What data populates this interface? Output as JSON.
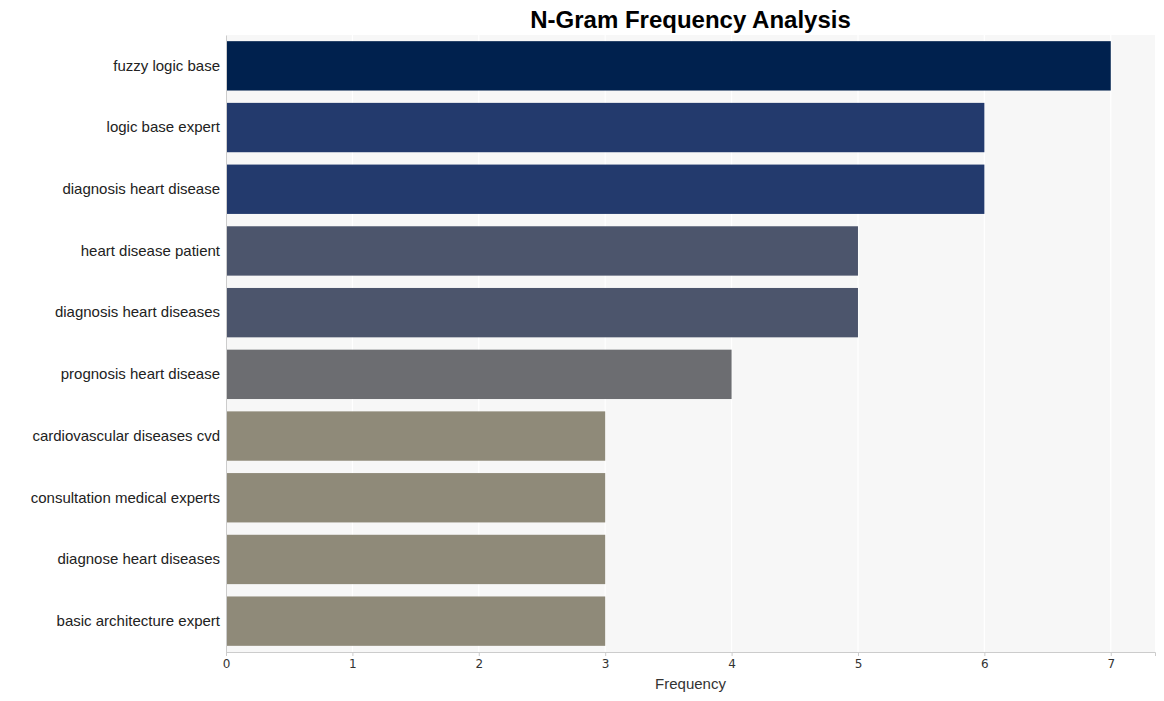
{
  "chart_data": {
    "type": "bar",
    "orientation": "horizontal",
    "title": "N-Gram Frequency Analysis",
    "x_label": "Frequency",
    "categories": [
      "fuzzy logic base",
      "logic base expert",
      "diagnosis heart disease",
      "heart disease patient",
      "diagnosis heart diseases",
      "prognosis heart disease",
      "cardiovascular diseases cvd",
      "consultation medical experts",
      "diagnose heart diseases",
      "basic architecture expert"
    ],
    "values": [
      7,
      6,
      6,
      5,
      5,
      4,
      3,
      3,
      3,
      3
    ],
    "colors": [
      "#00214e",
      "#233a6d",
      "#233a6d",
      "#4c556c",
      "#4c556c",
      "#6c6d71",
      "#8f8a79",
      "#8f8a79",
      "#8f8a79",
      "#8f8a79"
    ],
    "xlim": [
      0,
      7.35
    ],
    "xticks": [
      0,
      1,
      2,
      3,
      4,
      5,
      6,
      7
    ],
    "grid": true
  }
}
